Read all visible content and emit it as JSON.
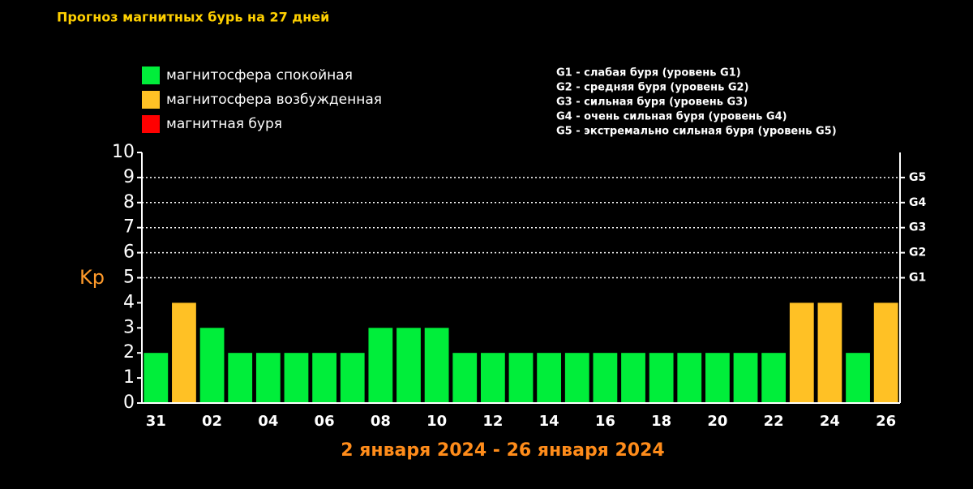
{
  "chart_data": {
    "type": "bar",
    "title": "Прогноз магнитных бурь на 27 дней",
    "ylabel": "Kp",
    "xlabel": "2 января 2024 - 26 января 2024",
    "legend": [
      {
        "label": "магнитосфера спокойная",
        "color": "#00ee3a"
      },
      {
        "label": "магнитосфера возбужденная",
        "color": "#ffc125"
      },
      {
        "label": "магнитная буря",
        "color": "#ff0000"
      }
    ],
    "levels": [
      "G1 - слабая буря (уровень G1)",
      "G2 - средняя буря (уровень G2)",
      "G3 - сильная буря (уровень G3)",
      "G4 - очень сильная буря (уровень G4)",
      "G5 - экстремально сильная буря (уровень G5)"
    ],
    "categories": [
      "31",
      null,
      "02",
      null,
      "04",
      null,
      "06",
      null,
      "08",
      null,
      "10",
      null,
      "12",
      null,
      "14",
      null,
      "16",
      null,
      "18",
      null,
      "20",
      null,
      "22",
      null,
      "24",
      null,
      "26"
    ],
    "values": [
      2,
      4,
      3,
      2,
      2,
      2,
      2,
      2,
      3,
      3,
      3,
      2,
      2,
      2,
      2,
      2,
      2,
      2,
      2,
      2,
      2,
      2,
      2,
      4,
      4,
      2,
      4
    ],
    "colors": [
      "#00ee3a",
      "#ffc125",
      "#00ee3a",
      "#00ee3a",
      "#00ee3a",
      "#00ee3a",
      "#00ee3a",
      "#00ee3a",
      "#00ee3a",
      "#00ee3a",
      "#00ee3a",
      "#00ee3a",
      "#00ee3a",
      "#00ee3a",
      "#00ee3a",
      "#00ee3a",
      "#00ee3a",
      "#00ee3a",
      "#00ee3a",
      "#00ee3a",
      "#00ee3a",
      "#00ee3a",
      "#00ee3a",
      "#ffc125",
      "#ffc125",
      "#00ee3a",
      "#ffc125"
    ],
    "ylim": [
      0,
      10
    ],
    "yticks": [
      0,
      1,
      2,
      3,
      4,
      5,
      6,
      7,
      8,
      9,
      10
    ],
    "y2lim": [
      0,
      10
    ],
    "y2ticks": [
      {
        "value": 5,
        "label": "G1"
      },
      {
        "value": 6,
        "label": "G2"
      },
      {
        "value": 7,
        "label": "G3"
      },
      {
        "value": 8,
        "label": "G4"
      },
      {
        "value": 9,
        "label": "G5"
      }
    ],
    "grid": true
  }
}
